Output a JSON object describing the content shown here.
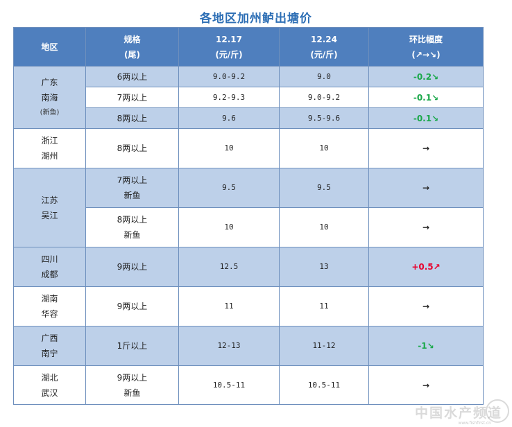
{
  "title": "各地区加州鲈出塘价",
  "header": {
    "region": "地区",
    "spec": "规格",
    "spec_unit": "(尾)",
    "date1": "12.17",
    "date1_unit": "(元/斤)",
    "date2": "12.24",
    "date2_unit": "(元/斤)",
    "change": "环比幅度",
    "change_legend": "(↗→↘)"
  },
  "rows": {
    "r1": {
      "region_a": "广东",
      "region_b": "南海",
      "region_note": "(新鱼)",
      "spec": "6两以上",
      "p1": "9.0-9.2",
      "p2": "9.0",
      "change": "-0.2↘"
    },
    "r2": {
      "spec": "7两以上",
      "p1": "9.2-9.3",
      "p2": "9.0-9.2",
      "change": "-0.1↘"
    },
    "r3": {
      "spec": "8两以上",
      "p1": "9.6",
      "p2": "9.5-9.6",
      "change": "-0.1↘"
    },
    "r4": {
      "region_a": "浙江",
      "region_b": "湖州",
      "spec": "8两以上",
      "p1": "10",
      "p2": "10",
      "change": "→"
    },
    "r5": {
      "region_a": "江苏",
      "region_b": "吴江",
      "spec_a": "7两以上",
      "spec_b": "新鱼",
      "p1": "9.5",
      "p2": "9.5",
      "change": "→"
    },
    "r6": {
      "spec_a": "8两以上",
      "spec_b": "新鱼",
      "p1": "10",
      "p2": "10",
      "change": "→"
    },
    "r7": {
      "region_a": "四川",
      "region_b": "成都",
      "spec": "9两以上",
      "p1": "12.5",
      "p2": "13",
      "change": "+0.5↗"
    },
    "r8": {
      "region_a": "湖南",
      "region_b": "华容",
      "spec": "9两以上",
      "p1": "11",
      "p2": "11",
      "change": "→"
    },
    "r9": {
      "region_a": "广西",
      "region_b": "南宁",
      "spec": "1斤以上",
      "p1": "12-13",
      "p2": "11-12",
      "change": "-1↘"
    },
    "r10": {
      "region_a": "湖北",
      "region_b": "武汉",
      "spec_a": "9两以上",
      "spec_b": "新鱼",
      "p1": "10.5-11",
      "p2": "10.5-11",
      "change": "→"
    }
  },
  "watermark": "中国水产频道",
  "watermark_url": "www.fishfirst.cn",
  "colors": {
    "header_bg": "#4f7fbe",
    "band_blue": "#bdd0e9",
    "down": "#1aa84a",
    "up": "#e8002d",
    "title": "#2e6fb5"
  }
}
